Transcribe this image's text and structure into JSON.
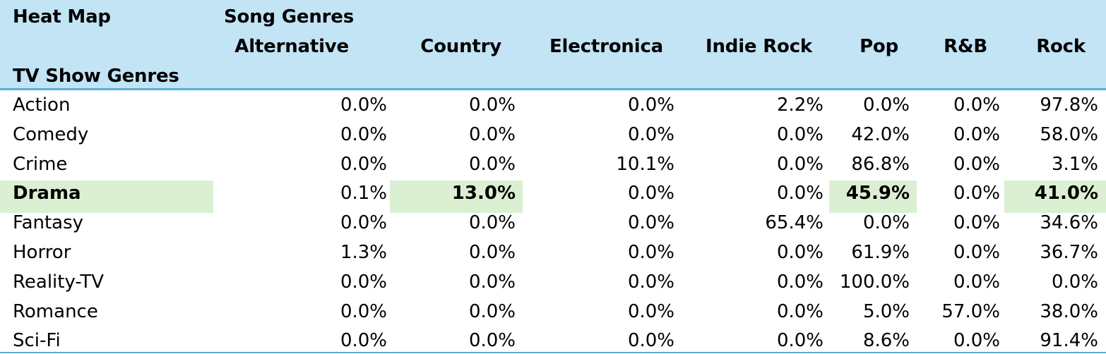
{
  "chart_data": {
    "type": "heatmap",
    "title": "Heat Map",
    "col_axis_label": "Song Genres",
    "row_axis_label": "TV Show Genres",
    "columns": [
      "Alternative",
      "Country",
      "Electronica",
      "Indie Rock",
      "Pop",
      "R&B",
      "Rock"
    ],
    "rows": [
      {
        "label": "Action",
        "values": [
          "0.0%",
          "0.0%",
          "0.0%",
          "2.2%",
          "0.0%",
          "0.0%",
          "97.8%"
        ]
      },
      {
        "label": "Comedy",
        "values": [
          "0.0%",
          "0.0%",
          "0.0%",
          "0.0%",
          "42.0%",
          "0.0%",
          "58.0%"
        ]
      },
      {
        "label": "Crime",
        "values": [
          "0.0%",
          "0.0%",
          "10.1%",
          "0.0%",
          "86.8%",
          "0.0%",
          "3.1%"
        ]
      },
      {
        "label": "Drama",
        "values": [
          "0.1%",
          "13.0%",
          "0.0%",
          "0.0%",
          "45.9%",
          "0.0%",
          "41.0%"
        ],
        "highlighted": true,
        "highlight_cols": [
          1,
          4,
          6
        ]
      },
      {
        "label": "Fantasy",
        "values": [
          "0.0%",
          "0.0%",
          "0.0%",
          "65.4%",
          "0.0%",
          "0.0%",
          "34.6%"
        ]
      },
      {
        "label": "Horror",
        "values": [
          "1.3%",
          "0.0%",
          "0.0%",
          "0.0%",
          "61.9%",
          "0.0%",
          "36.7%"
        ]
      },
      {
        "label": "Reality-TV",
        "values": [
          "0.0%",
          "0.0%",
          "0.0%",
          "0.0%",
          "100.0%",
          "0.0%",
          "0.0%"
        ]
      },
      {
        "label": "Romance",
        "values": [
          "0.0%",
          "0.0%",
          "0.0%",
          "0.0%",
          "5.0%",
          "57.0%",
          "38.0%"
        ]
      },
      {
        "label": "Sci-Fi",
        "values": [
          "0.0%",
          "0.0%",
          "0.0%",
          "0.0%",
          "8.6%",
          "0.0%",
          "91.4%"
        ]
      }
    ],
    "colors": {
      "header_bg": "#c2e4f5",
      "rule": "#5aaed6",
      "highlight": "#dbf0d2"
    }
  }
}
